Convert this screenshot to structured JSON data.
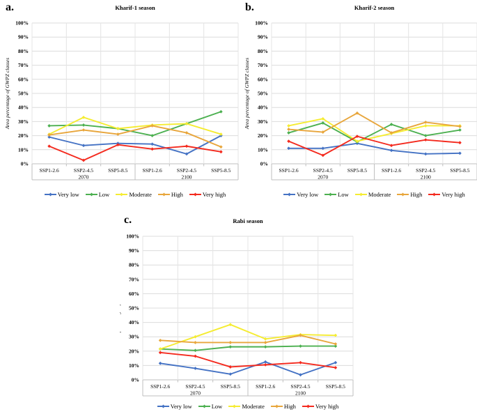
{
  "figure": {
    "background": "#ffffff",
    "grid_color": "#dcdcdc",
    "vgrid_color": "#e4e4e4",
    "axis_color": "#bfbfbf",
    "text_color": "#000000"
  },
  "chart_data": [
    {
      "type": "line",
      "panel_label": "a.",
      "title": "Kharif-1 season",
      "ylabel": "Area percentage of GWPZ classes",
      "ylim": [
        0,
        100
      ],
      "ytick_step": 10,
      "ytick_labels": [
        "0%",
        "10%",
        "20%",
        "30%",
        "40%",
        "50%",
        "60%",
        "70%",
        "80%",
        "90%",
        "100%"
      ],
      "grid": true,
      "legend_position": "bottom",
      "categories": [
        "SSP1-2.6",
        "SSP2-4.5",
        "SSP5-8.5",
        "SSP1-2.6",
        "SSP2-4.5",
        "SSP5-8.5"
      ],
      "group_labels": [
        "2070",
        "2100"
      ],
      "series": [
        {
          "name": "Very low",
          "color": "#4472c4",
          "values": [
            19,
            13,
            14.5,
            14,
            7,
            20
          ]
        },
        {
          "name": "Low",
          "color": "#4cb050",
          "values": [
            27,
            27.5,
            25,
            20,
            28.5,
            37
          ]
        },
        {
          "name": "Moderate",
          "color": "#f5ec32",
          "values": [
            21,
            33,
            25,
            27.5,
            28.5,
            21
          ]
        },
        {
          "name": "High",
          "color": "#e8a63c",
          "values": [
            20.5,
            24,
            21,
            27,
            22,
            12
          ]
        },
        {
          "name": "Very high",
          "color": "#f42a1e",
          "values": [
            12.5,
            2.5,
            13.5,
            10.5,
            12.5,
            8.5
          ]
        }
      ]
    },
    {
      "type": "line",
      "panel_label": "b.",
      "title": "Kharif-2 season",
      "ylabel": "Area percentage of GWPZ classes",
      "ylim": [
        0,
        100
      ],
      "ytick_step": 10,
      "ytick_labels": [
        "0%",
        "10%",
        "20%",
        "30%",
        "40%",
        "50%",
        "60%",
        "70%",
        "80%",
        "90%",
        "100%"
      ],
      "grid": true,
      "legend_position": "bottom",
      "categories": [
        "SSP1-2.6",
        "SSP2-4.5",
        "SSP5-8.5",
        "SSP1-2.6",
        "SSP2-4.5",
        "SSP5-8.5"
      ],
      "group_labels": [
        "2070",
        "2100"
      ],
      "series": [
        {
          "name": "Very low",
          "color": "#4472c4",
          "values": [
            11,
            11,
            14.5,
            9.5,
            7,
            7.5
          ]
        },
        {
          "name": "Low",
          "color": "#4cb050",
          "values": [
            22,
            29,
            15.5,
            28,
            20,
            24
          ]
        },
        {
          "name": "Moderate",
          "color": "#f5ec32",
          "values": [
            27,
            32,
            16,
            21.5,
            27,
            27
          ]
        },
        {
          "name": "High",
          "color": "#e8a63c",
          "values": [
            24.5,
            22.5,
            36,
            22,
            29.5,
            26.5
          ]
        },
        {
          "name": "Very high",
          "color": "#f42a1e",
          "values": [
            16,
            6,
            19.5,
            13,
            17,
            15
          ]
        }
      ]
    },
    {
      "type": "line",
      "panel_label": "c.",
      "title": "Rabi season",
      "ylabel": "Area percentage of GWPZ classes",
      "ylim": [
        0,
        100
      ],
      "ytick_step": 10,
      "ytick_labels": [
        "0%",
        "10%",
        "20%",
        "30%",
        "40%",
        "50%",
        "60%",
        "70%",
        "80%",
        "90%",
        "100%"
      ],
      "grid": true,
      "legend_position": "bottom",
      "categories": [
        "SSP1-2.6",
        "SSP2-4.5",
        "SSP5-8.5",
        "SSP1-2.6",
        "SSP2-4.5",
        "SSP5-8.5"
      ],
      "group_labels": [
        "2070",
        "2100"
      ],
      "series": [
        {
          "name": "Very low",
          "color": "#4472c4",
          "values": [
            11.5,
            8,
            4,
            12.5,
            3.5,
            12
          ]
        },
        {
          "name": "Low",
          "color": "#4cb050",
          "values": [
            21.5,
            20.5,
            23,
            23,
            23.5,
            23.5
          ]
        },
        {
          "name": "Moderate",
          "color": "#f5ec32",
          "values": [
            21.5,
            30,
            38.5,
            28.5,
            31.5,
            31
          ]
        },
        {
          "name": "High",
          "color": "#e8a63c",
          "values": [
            27.5,
            26,
            26,
            26,
            31,
            25
          ]
        },
        {
          "name": "Very high",
          "color": "#f42a1e",
          "values": [
            19,
            16.5,
            9,
            10.5,
            12,
            8.5
          ]
        }
      ]
    }
  ]
}
